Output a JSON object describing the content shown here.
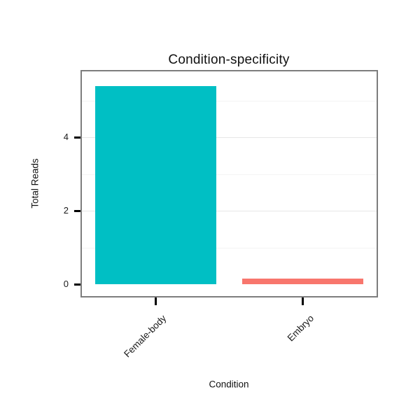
{
  "chart_data": {
    "type": "bar",
    "title": "Condition-specificity",
    "xlabel": "Condition",
    "ylabel": "Total Reads",
    "categories": [
      "Female-body",
      "Embryo"
    ],
    "values": [
      5.4,
      0.15
    ],
    "colors": [
      "#00BFC4",
      "#F8766D"
    ],
    "yticks": [
      0,
      2,
      4
    ],
    "ylim": [
      0,
      5.8
    ],
    "legend": "none",
    "grid": "faint horizontal gridlines, major at ticks, minor between",
    "panel_border_color": "#7d7d7d",
    "tick_color": "#000000"
  }
}
